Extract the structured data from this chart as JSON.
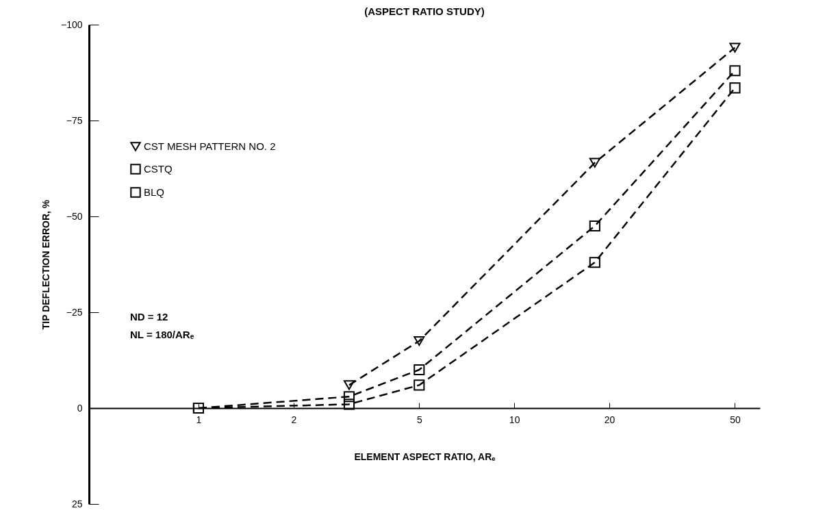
{
  "chart_data": {
    "type": "line",
    "title": "(ASPECT RATIO STUDY)",
    "xlabel": "ELEMENT ASPECT RATIO, ARₑ",
    "ylabel": "TIP DEFLECTION ERROR, %",
    "x": [
      1,
      3,
      5,
      18,
      50
    ],
    "series": [
      {
        "name": "CST MESH PATTERN NO. 2",
        "color": "#000000",
        "marker": "triangle",
        "values": [
          null,
          -6,
          -17.5,
          -64,
          -94
        ]
      },
      {
        "name": "CSTQ",
        "color": "#000000",
        "marker": "square",
        "values": [
          0,
          -3,
          -10,
          -47.5,
          -88
        ]
      },
      {
        "name": "BLQ",
        "color": "#000000",
        "marker": "square",
        "values": [
          0,
          -1,
          -6,
          -38,
          -83.5
        ]
      }
    ],
    "log": "x",
    "xlim": [
      0.45,
      60
    ],
    "xticks": [
      1,
      2,
      5,
      10,
      20,
      50
    ],
    "ylim": [
      25,
      -100
    ],
    "yticks": [
      -100,
      -75,
      -50,
      -25,
      0,
      25
    ],
    "annotations": [
      "ND = 12",
      "NL = 180/ARₑ"
    ],
    "line_style": "dashed",
    "grid": false,
    "legend": "top left"
  }
}
